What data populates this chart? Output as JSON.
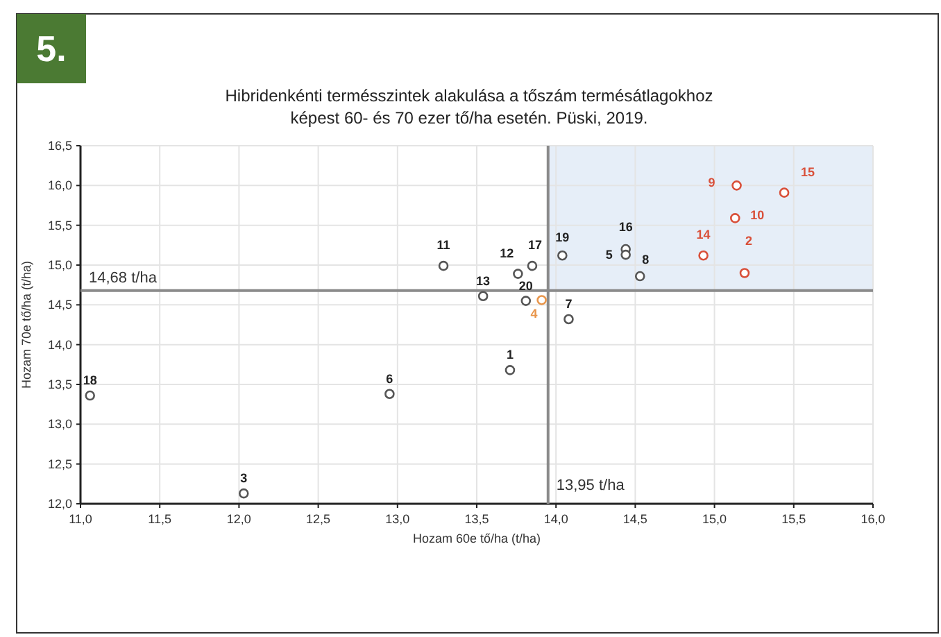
{
  "chart_data": {
    "type": "scatter",
    "title": "Hibridenkénti termésszintek alakulása a tőszám termésátlagokhoz\nképest 60- és 70 ezer tő/ha esetén. Püski, 2019.",
    "xlabel": "Hozam 60e tő/ha (t/ha)",
    "ylabel": "Hozam 70e tő/ha (t/ha)",
    "xlim": [
      11,
      16
    ],
    "ylim": [
      12,
      16.5
    ],
    "xticks": [
      {
        "value": 11,
        "label": "11,0"
      },
      {
        "value": 11.5,
        "label": "11,5"
      },
      {
        "value": 12,
        "label": "12,0"
      },
      {
        "value": 12.5,
        "label": "12,5"
      },
      {
        "value": 13,
        "label": "13,0"
      },
      {
        "value": 13.5,
        "label": "13,5"
      },
      {
        "value": 14,
        "label": "14,0"
      },
      {
        "value": 14.5,
        "label": "14,5"
      },
      {
        "value": 15,
        "label": "15,0"
      },
      {
        "value": 15.5,
        "label": "15,5"
      },
      {
        "value": 16,
        "label": "16,0"
      }
    ],
    "yticks": [
      {
        "value": 12,
        "label": "12,0"
      },
      {
        "value": 12.5,
        "label": "12,5"
      },
      {
        "value": 13,
        "label": "13,0"
      },
      {
        "value": 13.5,
        "label": "13,5"
      },
      {
        "value": 14,
        "label": "14,0"
      },
      {
        "value": 14.5,
        "label": "14,5"
      },
      {
        "value": 15,
        "label": "15,0"
      },
      {
        "value": 15.5,
        "label": "15,5"
      },
      {
        "value": 16,
        "label": "16,0"
      },
      {
        "value": 16.5,
        "label": "16,5"
      }
    ],
    "grid": true,
    "marker": "circle",
    "series": [
      {
        "color": "#555555",
        "x": [
          11.06,
          12.03,
          12.95,
          13.29,
          13.54,
          13.71,
          13.76,
          13.85,
          13.81,
          13.91,
          14.04,
          14.44,
          14.44,
          14.53,
          14.08,
          14.93,
          15.19,
          15.13,
          15.14,
          15.44
        ],
        "values": [
          13.36,
          12.13,
          13.38,
          14.99,
          14.61,
          13.68,
          14.89,
          14.99,
          14.55,
          14.56,
          15.12,
          15.2,
          15.13,
          14.86,
          14.32,
          15.12,
          14.9,
          15.59,
          16.0,
          15.91
        ],
        "colors": [
          "#555555",
          "#555555",
          "#555555",
          "#555555",
          "#555555",
          "#555555",
          "#555555",
          "#555555",
          "#555555",
          "#e8954a",
          "#555555",
          "#555555",
          "#555555",
          "#555555",
          "#555555",
          "#d9503a",
          "#d9503a",
          "#d9503a",
          "#d9503a",
          "#d9503a"
        ]
      }
    ],
    "ref_lines": [
      {
        "axis": "x",
        "value": 13.95,
        "label": "13,95 t/ha",
        "color": "#8a8a8a"
      },
      {
        "axis": "y",
        "value": 14.68,
        "label": "14,68 t/ha",
        "color": "#8a8a8a"
      }
    ],
    "bands": [
      {
        "axis": "x",
        "from": 13.95,
        "to": 16,
        "color": "#e6eef8"
      }
    ],
    "annotations": [
      "5.",
      {
        "text": "18",
        "x": 11.06,
        "y": 13.36
      },
      {
        "text": "3",
        "x": 12.03,
        "y": 12.13
      },
      {
        "text": "6",
        "x": 12.95,
        "y": 13.38
      },
      {
        "text": "11",
        "x": 13.29,
        "y": 14.99
      },
      {
        "text": "13",
        "x": 13.54,
        "y": 14.61
      },
      {
        "text": "1",
        "x": 13.71,
        "y": 13.68
      },
      {
        "text": "12",
        "x": 13.76,
        "y": 14.89
      },
      {
        "text": "17",
        "x": 13.85,
        "y": 14.99
      },
      {
        "text": "20",
        "x": 13.81,
        "y": 14.55
      },
      {
        "text": "4",
        "x": 13.91,
        "y": 14.56
      },
      {
        "text": "19",
        "x": 14.04,
        "y": 15.12
      },
      {
        "text": "16",
        "x": 14.44,
        "y": 15.2
      },
      {
        "text": "5",
        "x": 14.44,
        "y": 15.13
      },
      {
        "text": "8",
        "x": 14.53,
        "y": 14.86
      },
      {
        "text": "7",
        "x": 14.08,
        "y": 14.32
      },
      {
        "text": "14",
        "x": 14.93,
        "y": 15.12
      },
      {
        "text": "2",
        "x": 15.19,
        "y": 14.9
      },
      {
        "text": "10",
        "x": 15.13,
        "y": 15.59
      },
      {
        "text": "9",
        "x": 15.14,
        "y": 16.0
      },
      {
        "text": "15",
        "x": 15.44,
        "y": 15.91
      }
    ]
  }
}
